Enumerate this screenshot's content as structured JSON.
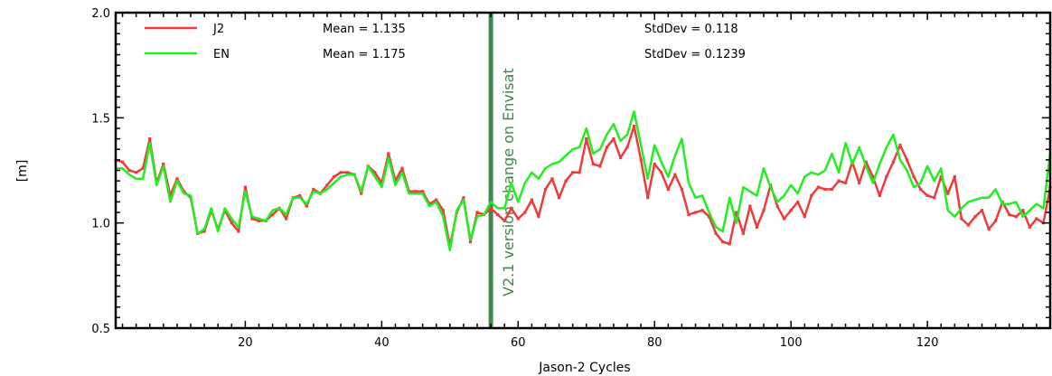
{
  "chart_data": {
    "type": "line",
    "xlabel": "Jason-2 Cycles",
    "ylabel": "[m]",
    "xlim": [
      1,
      138
    ],
    "ylim": [
      0.5,
      2.0
    ],
    "xticks": [
      20,
      40,
      60,
      80,
      100,
      120
    ],
    "yticks": [
      "0.5",
      "1.0",
      "1.5",
      "2.0"
    ],
    "grid": false,
    "legend_position": "top-left",
    "vertical_marker": {
      "x": 56,
      "label": "V2.1 version change on Envisat",
      "color": "#3c8a4a"
    },
    "series": [
      {
        "name": "J2",
        "color": "#ee3b3b",
        "mean_text": "Mean = 1.135",
        "stddev_text": "StdDev = 0.118",
        "x": [
          1,
          2,
          3,
          4,
          5,
          6,
          7,
          8,
          9,
          10,
          11,
          12,
          13,
          14,
          15,
          16,
          17,
          18,
          19,
          20,
          21,
          22,
          23,
          24,
          25,
          26,
          27,
          28,
          29,
          30,
          31,
          32,
          33,
          34,
          35,
          36,
          37,
          38,
          39,
          40,
          41,
          42,
          43,
          44,
          45,
          46,
          47,
          48,
          49,
          50,
          51,
          52,
          53,
          54,
          55,
          56,
          57,
          58,
          59,
          60,
          61,
          62,
          63,
          64,
          65,
          66,
          67,
          68,
          69,
          70,
          71,
          72,
          73,
          74,
          75,
          76,
          77,
          78,
          79,
          80,
          81,
          82,
          83,
          84,
          85,
          86,
          87,
          88,
          89,
          90,
          91,
          92,
          93,
          94,
          95,
          96,
          97,
          98,
          99,
          100,
          101,
          102,
          103,
          104,
          105,
          106,
          107,
          108,
          109,
          110,
          111,
          112,
          113,
          114,
          115,
          116,
          117,
          118,
          119,
          120,
          121,
          122,
          123,
          124,
          125,
          126,
          127,
          128,
          129,
          130,
          131,
          132,
          133,
          134,
          135,
          136,
          137,
          138
        ],
        "values": [
          1.3,
          1.29,
          1.25,
          1.24,
          1.26,
          1.4,
          1.19,
          1.28,
          1.13,
          1.21,
          1.15,
          1.12,
          0.95,
          0.96,
          1.06,
          0.97,
          1.06,
          1.0,
          0.96,
          1.17,
          1.02,
          1.01,
          1.01,
          1.04,
          1.07,
          1.02,
          1.12,
          1.13,
          1.08,
          1.16,
          1.14,
          1.18,
          1.22,
          1.24,
          1.24,
          1.23,
          1.14,
          1.27,
          1.24,
          1.19,
          1.33,
          1.2,
          1.26,
          1.15,
          1.15,
          1.15,
          1.09,
          1.11,
          1.06,
          0.89,
          1.05,
          1.12,
          0.91,
          1.05,
          1.04,
          1.07,
          1.04,
          1.01,
          1.07,
          1.02,
          1.05,
          1.11,
          1.03,
          1.16,
          1.21,
          1.12,
          1.2,
          1.24,
          1.24,
          1.4,
          1.28,
          1.27,
          1.36,
          1.4,
          1.31,
          1.36,
          1.46,
          1.3,
          1.12,
          1.28,
          1.24,
          1.16,
          1.23,
          1.16,
          1.04,
          1.05,
          1.06,
          1.03,
          0.95,
          0.91,
          0.9,
          1.05,
          0.95,
          1.08,
          0.98,
          1.06,
          1.18,
          1.08,
          1.02,
          1.06,
          1.1,
          1.03,
          1.13,
          1.17,
          1.16,
          1.16,
          1.2,
          1.19,
          1.29,
          1.19,
          1.29,
          1.22,
          1.13,
          1.22,
          1.29,
          1.37,
          1.3,
          1.22,
          1.16,
          1.13,
          1.12,
          1.22,
          1.14,
          1.22,
          1.02,
          0.99,
          1.03,
          1.06,
          0.97,
          1.01,
          1.1,
          1.04,
          1.03,
          1.06,
          0.98,
          1.02,
          1.0,
          1.17
        ]
      },
      {
        "name": "EN",
        "color": "#22ee22",
        "mean_text": "Mean = 1.175",
        "stddev_text": "StdDev = 0.1239",
        "x": [
          1,
          2,
          3,
          4,
          5,
          6,
          7,
          8,
          9,
          10,
          11,
          12,
          13,
          14,
          15,
          16,
          17,
          18,
          19,
          20,
          21,
          22,
          23,
          24,
          25,
          26,
          27,
          28,
          29,
          30,
          31,
          32,
          33,
          34,
          35,
          36,
          37,
          38,
          39,
          40,
          41,
          42,
          43,
          44,
          45,
          46,
          47,
          48,
          49,
          50,
          51,
          52,
          53,
          54,
          55,
          56,
          57,
          58,
          59,
          60,
          61,
          62,
          63,
          64,
          65,
          66,
          67,
          68,
          69,
          70,
          71,
          72,
          73,
          74,
          75,
          76,
          77,
          78,
          79,
          80,
          81,
          82,
          83,
          84,
          85,
          86,
          87,
          88,
          89,
          90,
          91,
          92,
          93,
          94,
          95,
          96,
          97,
          98,
          99,
          100,
          101,
          102,
          103,
          104,
          105,
          106,
          107,
          108,
          109,
          110,
          111,
          112,
          113,
          114,
          115,
          116,
          117,
          118,
          119,
          120,
          121,
          122,
          123,
          124,
          125,
          126,
          127,
          128,
          129,
          130,
          131,
          132,
          133,
          134,
          135,
          136,
          137,
          138
        ],
        "values": [
          1.26,
          1.26,
          1.23,
          1.21,
          1.21,
          1.38,
          1.18,
          1.27,
          1.1,
          1.2,
          1.14,
          1.13,
          0.95,
          0.97,
          1.07,
          0.96,
          1.07,
          1.02,
          0.98,
          1.15,
          1.03,
          1.02,
          1.01,
          1.06,
          1.07,
          1.04,
          1.12,
          1.12,
          1.09,
          1.15,
          1.14,
          1.16,
          1.19,
          1.22,
          1.23,
          1.23,
          1.15,
          1.27,
          1.22,
          1.17,
          1.31,
          1.18,
          1.24,
          1.14,
          1.14,
          1.14,
          1.08,
          1.1,
          1.03,
          0.87,
          1.06,
          1.11,
          0.92,
          1.03,
          1.04,
          1.1,
          1.07,
          1.07,
          1.19,
          1.1,
          1.19,
          1.24,
          1.21,
          1.26,
          1.28,
          1.29,
          1.32,
          1.35,
          1.36,
          1.45,
          1.33,
          1.35,
          1.42,
          1.47,
          1.39,
          1.42,
          1.53,
          1.37,
          1.21,
          1.37,
          1.29,
          1.22,
          1.32,
          1.4,
          1.19,
          1.12,
          1.13,
          1.05,
          0.98,
          0.96,
          1.12,
          1.0,
          1.17,
          1.15,
          1.13,
          1.26,
          1.17,
          1.1,
          1.13,
          1.18,
          1.14,
          1.22,
          1.24,
          1.23,
          1.25,
          1.33,
          1.24,
          1.38,
          1.28,
          1.36,
          1.27,
          1.19,
          1.28,
          1.36,
          1.42,
          1.3,
          1.25,
          1.17,
          1.19,
          1.27,
          1.2,
          1.26,
          1.06,
          1.03,
          1.07,
          1.1,
          1.11,
          1.12,
          1.12,
          1.16,
          1.09,
          1.09,
          1.1,
          1.03,
          1.06,
          1.09,
          1.07,
          1.33
        ]
      }
    ]
  }
}
